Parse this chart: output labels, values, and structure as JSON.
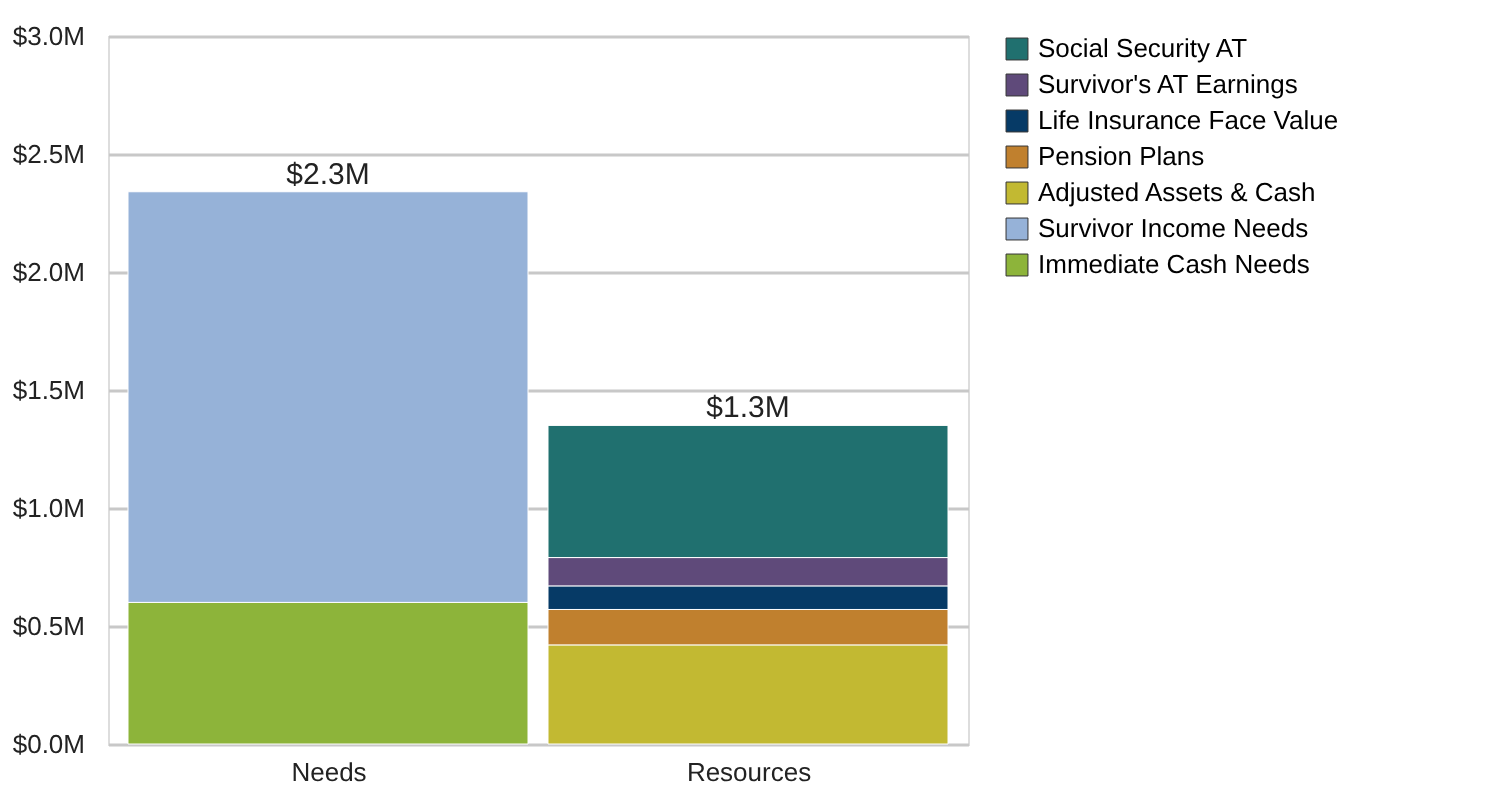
{
  "chart_data": {
    "type": "bar",
    "stacked": true,
    "categories": [
      "Needs",
      "Resources"
    ],
    "series": [
      {
        "name": "Immediate Cash Needs",
        "color": "#8db43a",
        "values": [
          0.6,
          null
        ]
      },
      {
        "name": "Survivor Income Needs",
        "color": "#96b2d8",
        "values": [
          1.74,
          null
        ]
      },
      {
        "name": "Adjusted Assets & Cash",
        "color": "#c2b932",
        "values": [
          null,
          0.42
        ]
      },
      {
        "name": "Pension Plans",
        "color": "#c0802e",
        "values": [
          null,
          0.15
        ]
      },
      {
        "name": "Life Insurance Face Value",
        "color": "#063a66",
        "values": [
          null,
          0.1
        ]
      },
      {
        "name": "Survivor's AT Earnings",
        "color": "#5f4a7a",
        "values": [
          null,
          0.12
        ]
      },
      {
        "name": "Social Security AT",
        "color": "#20706f",
        "values": [
          null,
          0.56
        ]
      }
    ],
    "totals": [
      "$2.3M",
      "$1.3M"
    ],
    "ylim": [
      0,
      3
    ],
    "yticks": [
      {
        "value": 0,
        "label": "$0.0M"
      },
      {
        "value": 0.5,
        "label": "$0.5M"
      },
      {
        "value": 1,
        "label": "$1.0M"
      },
      {
        "value": 1.5,
        "label": "$1.5M"
      },
      {
        "value": 2,
        "label": "$2.0M"
      },
      {
        "value": 2.5,
        "label": "$2.5M"
      },
      {
        "value": 3,
        "label": "$3.0M"
      }
    ],
    "grid": "y",
    "legend": "top right"
  }
}
